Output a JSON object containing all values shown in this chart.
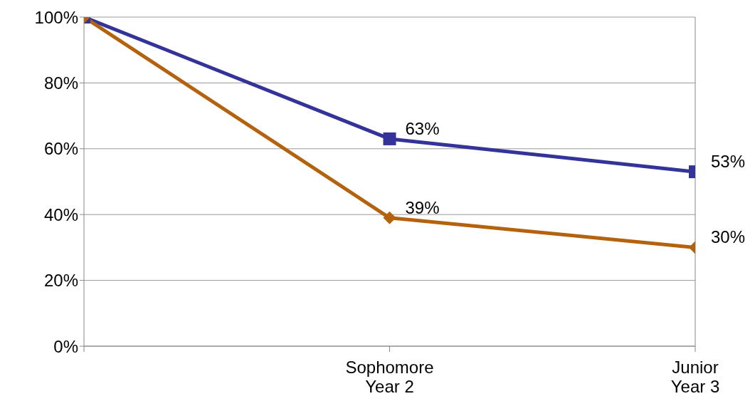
{
  "chart_data": {
    "type": "line",
    "categories": [
      null,
      "Sophomore\nYear 2",
      "Junior\nYear 3"
    ],
    "series": [
      {
        "color": "#333399",
        "marker": "square",
        "values": [
          100,
          63,
          53
        ],
        "value_labels": [
          null,
          "63%",
          "53%"
        ]
      },
      {
        "color": "#b5620e",
        "marker": "diamond",
        "values": [
          100,
          39,
          30
        ],
        "value_labels": [
          null,
          "39%",
          "30%"
        ]
      }
    ],
    "ylim": [
      0,
      100
    ],
    "yticks": [
      {
        "value": 0,
        "label": "0%"
      },
      {
        "value": 20,
        "label": "20%"
      },
      {
        "value": 40,
        "label": "40%"
      },
      {
        "value": 60,
        "label": "60%"
      },
      {
        "value": 80,
        "label": "80%"
      },
      {
        "value": 100,
        "label": "100%"
      }
    ],
    "grid": "y",
    "legend": false
  }
}
